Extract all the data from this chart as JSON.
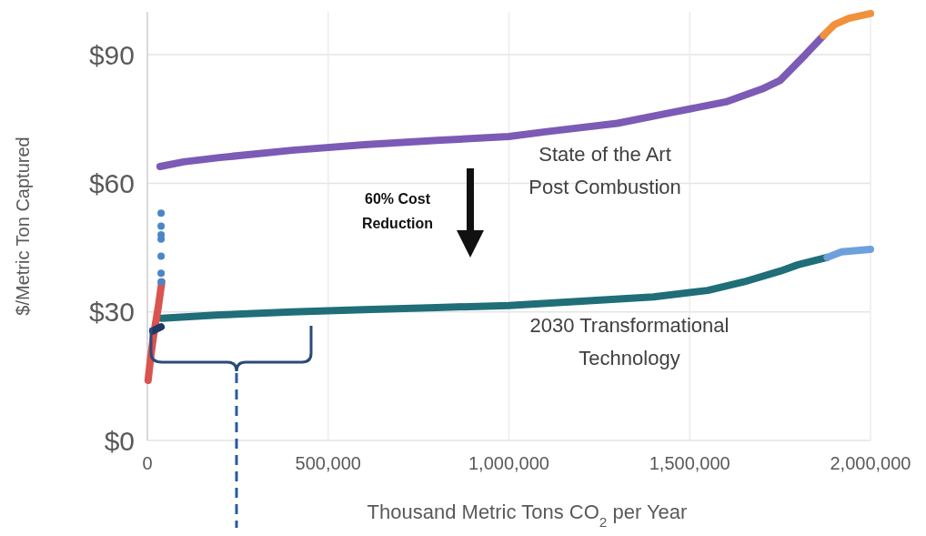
{
  "chart_data": {
    "type": "line",
    "xlabel": "Thousand Metric Tons CO$_{2}$ per Year",
    "ylabel": "$/Metric Ton Captured",
    "xlim": [
      0,
      2000000
    ],
    "xticks": [
      {
        "value": 0,
        "label": "0"
      },
      {
        "value": 500000,
        "label": "500,000"
      },
      {
        "value": 1000000,
        "label": "1,000,000"
      },
      {
        "value": 1500000,
        "label": "1,500,000"
      },
      {
        "value": 2000000,
        "label": "2,000,000"
      }
    ],
    "ylim": [
      0,
      100
    ],
    "yticks": [
      {
        "value": 0,
        "label": "$0"
      },
      {
        "value": 30,
        "label": "$30"
      },
      {
        "value": 60,
        "label": "$60"
      },
      {
        "value": 90,
        "label": "$90"
      }
    ],
    "grid": true,
    "line_style": "solid",
    "series": [
      {
        "color": "#7b5bb5",
        "x": [
          35000,
          100000,
          200000,
          400000,
          600000,
          800000,
          1000000,
          1100000,
          1300000,
          1450000,
          1600000,
          1700000,
          1750000,
          1820000,
          1870000
        ],
        "values": [
          63.9,
          65,
          66,
          67.7,
          69,
          70,
          70.9,
          72,
          74,
          76.5,
          79,
          82,
          84,
          90,
          94.5
        ]
      },
      {
        "color": "#f0913c",
        "x": [
          1870000,
          1900000,
          1940000,
          2000000
        ],
        "values": [
          94.5,
          97,
          98.5,
          99.6
        ]
      },
      {
        "color": "#1f6e78",
        "x": [
          40000,
          200000,
          400000,
          600000,
          800000,
          1000000,
          1200000,
          1400000,
          1550000,
          1650000,
          1750000,
          1800000,
          1880000
        ],
        "values": [
          28.5,
          29.3,
          30,
          30.5,
          31,
          31.5,
          32.5,
          33.5,
          35,
          37,
          39.5,
          41,
          42.7
        ]
      },
      {
        "color": "#6ea0dc",
        "x": [
          1880000,
          1920000,
          2000000
        ],
        "values": [
          42.7,
          44,
          44.6
        ]
      },
      {
        "color": "#d9534f",
        "x": [
          2000,
          10000,
          20000,
          30000,
          40000
        ],
        "values": [
          14,
          20,
          26,
          31,
          37
        ]
      },
      {
        "type": "scatter",
        "color": "#4a86c8",
        "x": [
          38000,
          38000,
          38000,
          38000,
          38000,
          38000,
          38000
        ],
        "values": [
          53,
          50,
          48,
          47,
          43,
          39,
          37
        ]
      },
      {
        "color": "#1f3864",
        "x": [
          15000,
          25000,
          38000
        ],
        "values": [
          25.5,
          26,
          26.5
        ]
      }
    ],
    "annotations": [
      "State of the Art\nPost Combustion",
      "2030 Transformational\nTechnology",
      "60% Cost\nReduction"
    ]
  }
}
